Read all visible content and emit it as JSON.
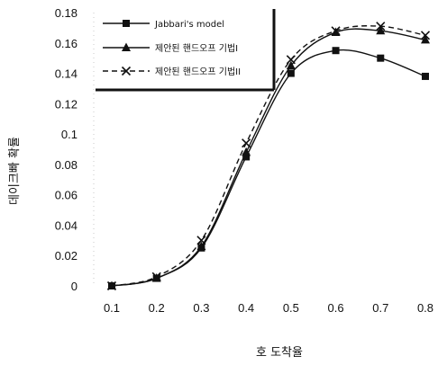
{
  "chart_data": {
    "type": "line",
    "xlabel": "호 도착율",
    "ylabel": "데이크빠 확률",
    "x": [
      0.1,
      0.2,
      0.3,
      0.4,
      0.5,
      0.6,
      0.7,
      0.8
    ],
    "xticks": [
      "0.1",
      "0.2",
      "0.3",
      "0.4",
      "0.5",
      "0.6",
      "0.7",
      "0.8"
    ],
    "ylim": [
      0,
      0.18
    ],
    "yticks": [
      "0",
      "0.02",
      "0.04",
      "0.06",
      "0.08",
      "0.1",
      "0.12",
      "0.14",
      "0.16",
      "0.18"
    ],
    "grid": false,
    "legend_position": "top-left",
    "series": [
      {
        "name": "Jabbari's model",
        "marker": "square",
        "dash": "solid",
        "values": [
          0.0,
          0.005,
          0.025,
          0.085,
          0.14,
          0.155,
          0.15,
          0.138
        ]
      },
      {
        "name": "제안된 핸드오프 기법I",
        "marker": "triangle",
        "dash": "solid",
        "values": [
          0.0,
          0.005,
          0.026,
          0.088,
          0.145,
          0.167,
          0.168,
          0.162
        ]
      },
      {
        "name": "제안된 핸드오프 기법II",
        "marker": "x",
        "dash": "dashed",
        "values": [
          0.0,
          0.006,
          0.03,
          0.094,
          0.149,
          0.168,
          0.171,
          0.165
        ]
      }
    ]
  }
}
